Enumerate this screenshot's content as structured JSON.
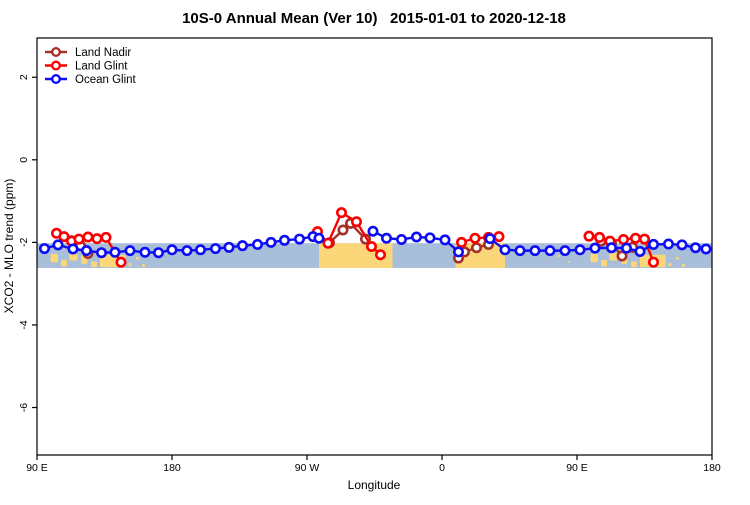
{
  "title": "10S-0 Annual Mean (Ver 10)   2015-01-01 to 2020-12-18",
  "chart_data": {
    "type": "line",
    "title": "10S-0 Annual Mean (Ver 10)   2015-01-01 to 2020-12-18",
    "xlabel": "Longitude",
    "ylabel": "XCO2 - MLO trend (ppm)",
    "xlim": [
      90,
      540
    ],
    "ylim": [
      -7.15,
      2.95
    ],
    "grid": false,
    "legend_position": "top-left",
    "x_ticks": [
      {
        "lon": 90,
        "label": "90 E"
      },
      {
        "lon": 180,
        "label": "180"
      },
      {
        "lon": 270,
        "label": "90 W"
      },
      {
        "lon": 360,
        "label": "0"
      },
      {
        "lon": 450,
        "label": "90 E"
      },
      {
        "lon": 540,
        "label": "180"
      }
    ],
    "y_ticks": [
      {
        "value": 2,
        "label": "2"
      },
      {
        "value": 0,
        "label": "0"
      },
      {
        "value": -2,
        "label": "-2"
      },
      {
        "value": -4,
        "label": "-4"
      },
      {
        "value": -6,
        "label": "-6"
      }
    ],
    "background_band": {
      "description": "ocean/land map strip for the 10S-0 latitude zone",
      "y_top": -2.02,
      "y_bottom": -2.62,
      "ocean_color": "#A9BFD9",
      "land_color": "#FBD77A",
      "land_blocks": [
        {
          "name": "south-america",
          "x0": 278,
          "x1": 327
        },
        {
          "name": "africa",
          "x0": 369,
          "x1": 402
        }
      ],
      "islands": [
        {
          "x0": 99,
          "x1": 104,
          "v0": -2.28,
          "v1": -2.48
        },
        {
          "x0": 106,
          "x1": 110,
          "v0": -2.42,
          "v1": -2.58
        },
        {
          "x0": 111.5,
          "x1": 117,
          "v0": -2.26,
          "v1": -2.44
        },
        {
          "x0": 119.5,
          "x1": 123.5,
          "v0": -2.3,
          "v1": -2.52
        },
        {
          "x0": 126,
          "x1": 130,
          "v0": -2.46,
          "v1": -2.6
        },
        {
          "x0": 132,
          "x1": 149,
          "v0": -2.3,
          "v1": -2.6
        },
        {
          "x0": 151,
          "x1": 153,
          "v0": -2.5,
          "v1": -2.58
        },
        {
          "x0": 156,
          "x1": 158,
          "v0": -2.35,
          "v1": -2.42
        },
        {
          "x0": 160,
          "x1": 162,
          "v0": -2.52,
          "v1": -2.6
        },
        {
          "x0": 437,
          "x1": 438.5,
          "v0": -2.3,
          "v1": -2.36
        },
        {
          "x0": 444,
          "x1": 445.5,
          "v0": -2.45,
          "v1": -2.5
        },
        {
          "x0": 459,
          "x1": 464,
          "v0": -2.28,
          "v1": -2.48
        },
        {
          "x0": 466,
          "x1": 470,
          "v0": -2.42,
          "v1": -2.58
        },
        {
          "x0": 471.5,
          "x1": 477,
          "v0": -2.26,
          "v1": -2.44
        },
        {
          "x0": 479.5,
          "x1": 483.5,
          "v0": -2.3,
          "v1": -2.52
        },
        {
          "x0": 486,
          "x1": 490,
          "v0": -2.46,
          "v1": -2.6
        },
        {
          "x0": 492,
          "x1": 509,
          "v0": -2.3,
          "v1": -2.6
        },
        {
          "x0": 511,
          "x1": 513,
          "v0": -2.5,
          "v1": -2.58
        },
        {
          "x0": 516,
          "x1": 518,
          "v0": -2.35,
          "v1": -2.42
        },
        {
          "x0": 520,
          "x1": 522,
          "v0": -2.52,
          "v1": -2.6
        }
      ]
    },
    "series": [
      {
        "name": "Land Nadir",
        "color": "#A43229",
        "marker": "open-circle",
        "segments": [
          [
            [
              113,
              -1.96
            ],
            [
              119,
              -2.08
            ],
            [
              124,
              -2.27
            ]
          ],
          [
            [
              285,
              -2.01
            ],
            [
              294,
              -1.7
            ],
            [
              299,
              -1.54
            ],
            [
              309,
              -1.92
            ]
          ],
          [
            [
              371,
              -2.38
            ],
            [
              375,
              -2.23
            ],
            [
              383,
              -2.13
            ],
            [
              391,
              -2.05
            ]
          ],
          [
            [
              466,
              -1.97
            ],
            [
              473,
              -2.03
            ],
            [
              480,
              -2.33
            ],
            [
              487,
              -2.12
            ]
          ]
        ]
      },
      {
        "name": "Land Glint",
        "color": "#FA0000",
        "marker": "open-circle",
        "segments": [
          [
            [
              103,
              -1.78
            ],
            [
              108,
              -1.86
            ],
            [
              113,
              -1.97
            ],
            [
              118,
              -1.92
            ],
            [
              124,
              -1.87
            ],
            [
              130,
              -1.91
            ],
            [
              136,
              -1.88
            ],
            [
              146,
              -2.48
            ]
          ],
          [
            [
              277,
              -1.74
            ],
            [
              284,
              -2.02
            ],
            [
              293,
              -1.28
            ],
            [
              303,
              -1.5
            ],
            [
              313,
              -2.1
            ],
            [
              319,
              -2.3
            ]
          ],
          [
            [
              373,
              -2.0
            ],
            [
              382,
              -1.9
            ],
            [
              391,
              -1.88
            ],
            [
              398,
              -1.86
            ]
          ],
          [
            [
              458,
              -1.85
            ],
            [
              465,
              -1.88
            ],
            [
              472,
              -1.97
            ],
            [
              481,
              -1.93
            ],
            [
              489,
              -1.9
            ],
            [
              495,
              -1.92
            ],
            [
              501,
              -2.48
            ]
          ]
        ]
      },
      {
        "name": "Ocean Glint",
        "color": "#0D0DF5",
        "marker": "open-circle",
        "segments": [
          [
            [
              95,
              -2.15
            ],
            [
              104,
              -2.06
            ],
            [
              114,
              -2.16
            ],
            [
              123,
              -2.2
            ],
            [
              133,
              -2.25
            ],
            [
              142,
              -2.24
            ],
            [
              152,
              -2.2
            ],
            [
              162,
              -2.24
            ],
            [
              171,
              -2.25
            ],
            [
              180,
              -2.18
            ],
            [
              190,
              -2.2
            ],
            [
              199,
              -2.18
            ],
            [
              209,
              -2.15
            ],
            [
              218,
              -2.12
            ],
            [
              227,
              -2.08
            ],
            [
              237,
              -2.05
            ],
            [
              246,
              -2.0
            ],
            [
              255,
              -1.95
            ],
            [
              265,
              -1.92
            ],
            [
              274,
              -1.86
            ],
            [
              278,
              -1.9
            ]
          ],
          [
            [
              314,
              -1.73
            ],
            [
              323,
              -1.9
            ],
            [
              333,
              -1.93
            ],
            [
              343,
              -1.87
            ],
            [
              352,
              -1.89
            ],
            [
              362,
              -1.94
            ],
            [
              371,
              -2.23
            ]
          ],
          [
            [
              392,
              -1.91
            ],
            [
              402,
              -2.18
            ],
            [
              412,
              -2.2
            ],
            [
              422,
              -2.2
            ],
            [
              432,
              -2.2
            ],
            [
              442,
              -2.2
            ],
            [
              452,
              -2.18
            ],
            [
              462,
              -2.14
            ],
            [
              473,
              -2.13
            ],
            [
              483,
              -2.14
            ],
            [
              492,
              -2.22
            ],
            [
              501,
              -2.05
            ],
            [
              511,
              -2.04
            ],
            [
              520,
              -2.06
            ],
            [
              529,
              -2.13
            ],
            [
              536,
              -2.16
            ]
          ]
        ]
      }
    ]
  }
}
